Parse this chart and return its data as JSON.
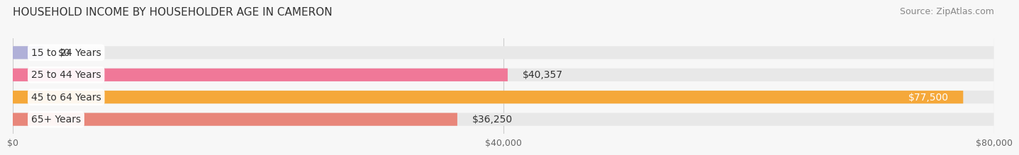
{
  "title": "HOUSEHOLD INCOME BY HOUSEHOLDER AGE IN CAMERON",
  "source": "Source: ZipAtlas.com",
  "categories": [
    "15 to 24 Years",
    "25 to 44 Years",
    "45 to 64 Years",
    "65+ Years"
  ],
  "values": [
    0,
    40357,
    77500,
    36250
  ],
  "bar_colors": [
    "#b0b0d8",
    "#f07898",
    "#f5a83a",
    "#e8867a"
  ],
  "bar_bg_color": "#e8e8e8",
  "xlim": [
    0,
    80000
  ],
  "xticks": [
    0,
    40000,
    80000
  ],
  "xtick_labels": [
    "$0",
    "$40,000",
    "$80,000"
  ],
  "value_labels": [
    "$0",
    "$40,357",
    "$77,500",
    "$36,250"
  ],
  "value_inside": [
    false,
    false,
    true,
    false
  ],
  "background_color": "#f7f7f7",
  "bar_height": 0.58,
  "title_fontsize": 11,
  "source_fontsize": 9,
  "label_fontsize": 10,
  "value_fontsize": 10,
  "tick_fontsize": 9
}
